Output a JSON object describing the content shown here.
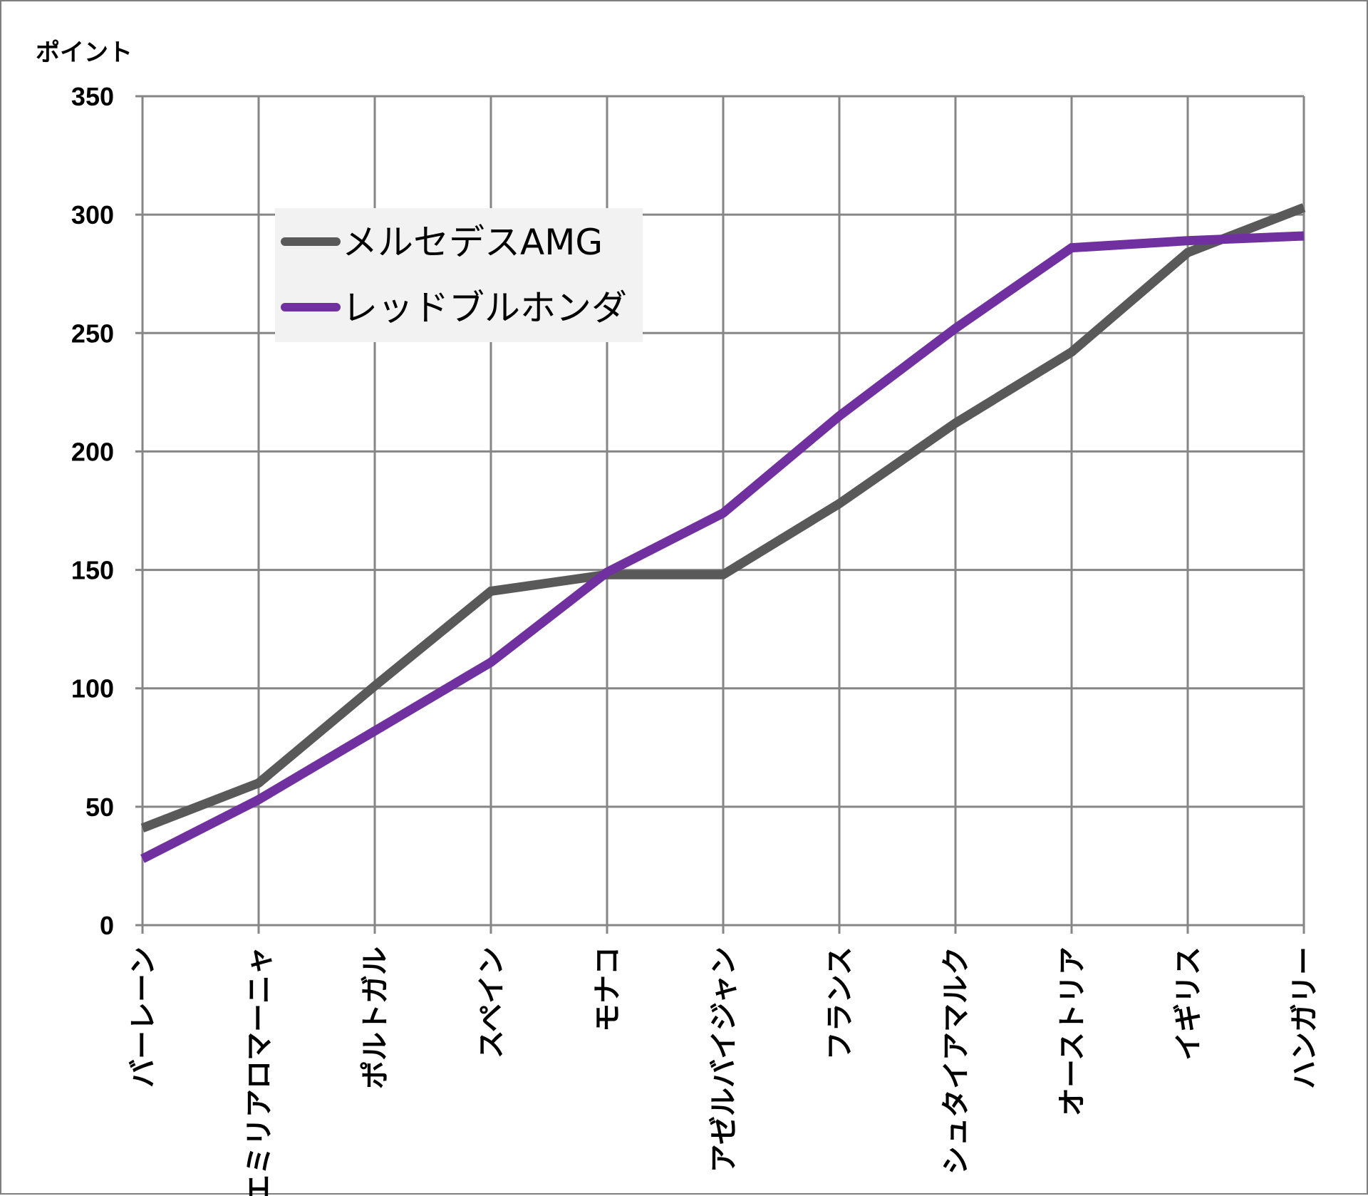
{
  "chart_data": {
    "type": "line",
    "ylabel": "ポイント",
    "xlabel": "",
    "ylim": [
      0,
      350
    ],
    "yticks": [
      0,
      50,
      100,
      150,
      200,
      250,
      300,
      350
    ],
    "grid": true,
    "legend_position": "upper-left",
    "categories": [
      "バーレーン",
      "エミリアロマーニャ",
      "ポルトガル",
      "スペイン",
      "モナコ",
      "アゼルバイジャン",
      "フランス",
      "シュタイアマルク",
      "オーストリア",
      "イギリス",
      "ハンガリー"
    ],
    "series": [
      {
        "name": "メルセデスAMG",
        "color": "#595959",
        "values": [
          41,
          60,
          101,
          141,
          148,
          148,
          178,
          212,
          242,
          284,
          303
        ]
      },
      {
        "name": "レッドブルホンダ",
        "color": "#7030a0",
        "values": [
          28,
          53,
          82,
          111,
          149,
          174,
          215,
          252,
          286,
          289,
          291
        ]
      }
    ]
  }
}
